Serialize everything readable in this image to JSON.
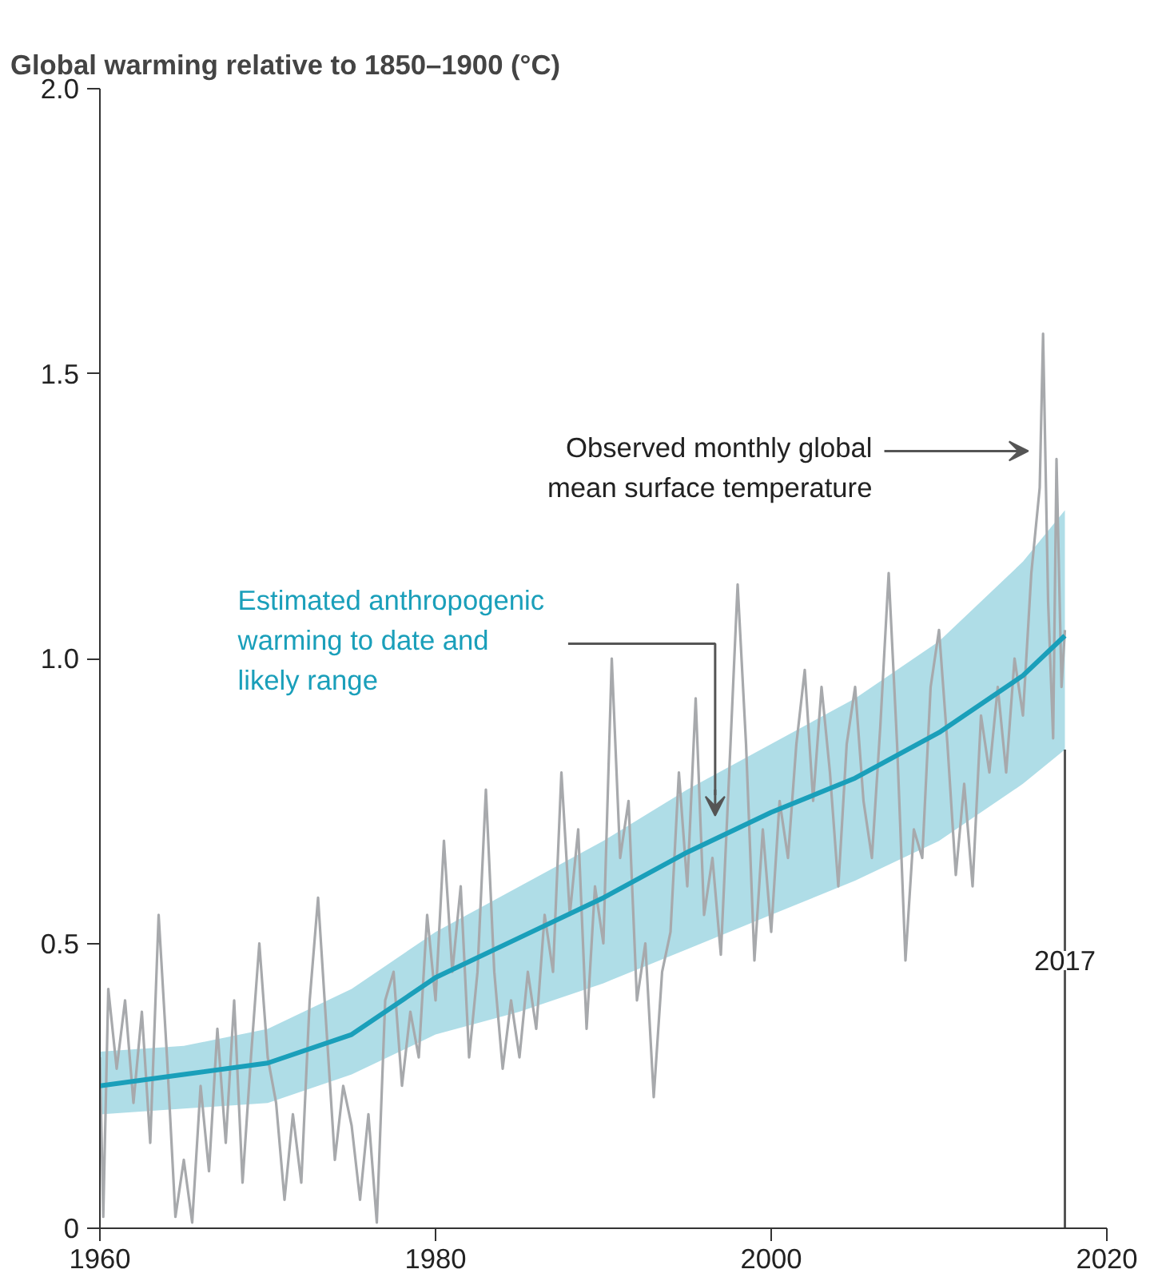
{
  "chart_data": {
    "type": "line",
    "title": "Global warming relative to 1850–1900 (°C)",
    "xlim": [
      1960,
      2020
    ],
    "ylim": [
      0,
      2
    ],
    "xticks": [
      1960,
      1980,
      2000,
      2020
    ],
    "yticks": [
      0,
      0.5,
      {
        "value": 1,
        "label": "1.0"
      },
      1.5,
      {
        "value": 2,
        "label": "2.0"
      }
    ],
    "grid": false,
    "series": [
      {
        "color": "#a7a9ac",
        "x": [
          1960.0,
          1960.2,
          1960.5,
          1961.0,
          1961.5,
          1962.0,
          1962.5,
          1963.0,
          1963.5,
          1964.0,
          1964.5,
          1965.0,
          1965.5,
          1966.0,
          1966.5,
          1967.0,
          1967.5,
          1968.0,
          1968.5,
          1969.0,
          1969.5,
          1970.0,
          1970.5,
          1971.0,
          1971.5,
          1972.0,
          1972.5,
          1973.0,
          1973.5,
          1974.0,
          1974.5,
          1975.0,
          1975.5,
          1976.0,
          1976.5,
          1977.0,
          1977.5,
          1978.0,
          1978.5,
          1979.0,
          1979.5,
          1980.0,
          1980.5,
          1981.0,
          1981.5,
          1982.0,
          1982.5,
          1983.0,
          1983.5,
          1984.0,
          1984.5,
          1985.0,
          1985.5,
          1986.0,
          1986.5,
          1987.0,
          1987.5,
          1988.0,
          1988.5,
          1989.0,
          1989.5,
          1990.0,
          1990.5,
          1991.0,
          1991.5,
          1992.0,
          1992.5,
          1993.0,
          1993.5,
          1994.0,
          1994.5,
          1995.0,
          1995.5,
          1996.0,
          1996.5,
          1997.0,
          1997.5,
          1998.0,
          1998.5,
          1999.0,
          1999.5,
          2000.0,
          2000.5,
          2001.0,
          2001.5,
          2002.0,
          2002.5,
          2003.0,
          2003.5,
          2004.0,
          2004.5,
          2005.0,
          2005.5,
          2006.0,
          2006.5,
          2007.0,
          2007.5,
          2008.0,
          2008.5,
          2009.0,
          2009.5,
          2010.0,
          2010.5,
          2011.0,
          2011.5,
          2012.0,
          2012.5,
          2013.0,
          2013.5,
          2014.0,
          2014.5,
          2015.0,
          2015.5,
          2016.0,
          2016.2,
          2016.5,
          2016.8,
          2017.0,
          2017.3,
          2017.5
        ],
        "values": [
          0.3,
          0.02,
          0.42,
          0.28,
          0.4,
          0.22,
          0.38,
          0.15,
          0.55,
          0.3,
          0.02,
          0.12,
          0.01,
          0.25,
          0.1,
          0.35,
          0.15,
          0.4,
          0.08,
          0.3,
          0.5,
          0.3,
          0.22,
          0.05,
          0.2,
          0.08,
          0.4,
          0.58,
          0.35,
          0.12,
          0.25,
          0.18,
          0.05,
          0.2,
          0.01,
          0.4,
          0.45,
          0.25,
          0.38,
          0.3,
          0.55,
          0.4,
          0.68,
          0.45,
          0.6,
          0.3,
          0.45,
          0.77,
          0.45,
          0.28,
          0.4,
          0.3,
          0.45,
          0.35,
          0.55,
          0.45,
          0.8,
          0.55,
          0.7,
          0.35,
          0.6,
          0.5,
          1.0,
          0.65,
          0.75,
          0.4,
          0.5,
          0.23,
          0.45,
          0.52,
          0.8,
          0.6,
          0.93,
          0.55,
          0.65,
          0.48,
          0.8,
          1.13,
          0.85,
          0.47,
          0.7,
          0.52,
          0.75,
          0.65,
          0.85,
          0.98,
          0.75,
          0.95,
          0.8,
          0.6,
          0.85,
          0.95,
          0.75,
          0.65,
          0.88,
          1.15,
          0.85,
          0.47,
          0.7,
          0.65,
          0.95,
          1.05,
          0.85,
          0.62,
          0.78,
          0.6,
          0.9,
          0.8,
          0.95,
          0.8,
          1.0,
          0.9,
          1.15,
          1.3,
          1.57,
          1.1,
          0.86,
          1.35,
          0.95,
          1.05
        ]
      },
      {
        "color": "#1a9fba",
        "x": [
          1960,
          1965,
          1970,
          1975,
          1980,
          1985,
          1990,
          1995,
          2000,
          2005,
          2010,
          2015,
          2017.5
        ],
        "values": [
          0.25,
          0.27,
          0.29,
          0.34,
          0.44,
          0.51,
          0.58,
          0.66,
          0.73,
          0.79,
          0.87,
          0.97,
          1.04
        ],
        "lower": [
          0.2,
          0.21,
          0.22,
          0.27,
          0.34,
          0.38,
          0.43,
          0.49,
          0.55,
          0.61,
          0.68,
          0.78,
          0.84
        ],
        "upper": [
          0.31,
          0.32,
          0.35,
          0.42,
          0.52,
          0.6,
          0.68,
          0.77,
          0.85,
          0.93,
          1.03,
          1.17,
          1.26
        ]
      }
    ],
    "annotations": [
      "Observed monthly global\nmean surface temperature",
      "Estimated anthropogenic\nwarming to date and\nlikely range"
    ],
    "ref_lines": [
      {
        "axis": "x",
        "value": 2017.5,
        "label": "2017"
      }
    ]
  }
}
